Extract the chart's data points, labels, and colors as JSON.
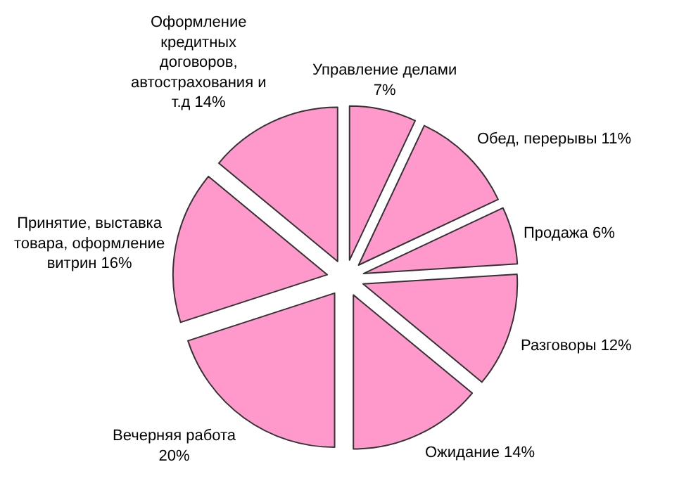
{
  "chart_data": {
    "type": "pie",
    "categories": [
      "Управление делами",
      "Обед, перерывы",
      "Продажа",
      "Разговоры",
      "Ожидание",
      "Вечерняя работа",
      "Принятие, выставка товара, оформление витрин",
      "Оформление кредитных договоров, автострахования и т.д"
    ],
    "values": [
      7,
      11,
      6,
      12,
      14,
      20,
      16,
      14
    ],
    "value_labels": [
      "7%",
      "11%",
      "6%",
      "12%",
      "14%",
      "20%",
      "16%",
      "14%"
    ],
    "colors": [
      "#ff99cc",
      "#ff99cc",
      "#ff99cc",
      "#ff99cc",
      "#ff99cc",
      "#ff99cc",
      "#ff99cc",
      "#ff99cc"
    ],
    "legend": false
  }
}
